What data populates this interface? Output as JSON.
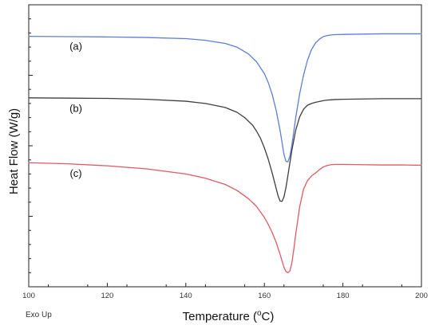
{
  "chart_data": {
    "type": "line",
    "title": "",
    "xlabel": "Temperature (",
    "xlabel_sup": "o",
    "xlabel_suffix": "C)",
    "ylabel": "Heat Flow (W/g)",
    "corner_note": "Exo Up",
    "xlim": [
      100,
      200
    ],
    "ylim": [
      0,
      100
    ],
    "xticks": [
      100,
      120,
      140,
      160,
      180,
      200
    ],
    "y_tick_labels_shown": false,
    "grid": false,
    "series": [
      {
        "label": "(a)",
        "color": "#5b7fd6",
        "x": [
          100,
          110,
          120,
          130,
          140,
          145,
          150,
          153,
          156,
          158,
          160,
          161,
          162,
          163,
          164,
          165,
          165.5,
          166,
          166.5,
          167,
          167.5,
          168,
          169,
          170,
          171,
          172,
          173,
          174,
          175,
          176,
          177,
          178,
          180,
          185,
          190,
          195,
          200
        ],
        "y": [
          88.8,
          88.7,
          88.6,
          88.4,
          88.0,
          87.4,
          86.3,
          85.0,
          82.5,
          79.8,
          75.6,
          72.4,
          68.2,
          62.6,
          55.5,
          46.9,
          44.5,
          44.3,
          46.3,
          50.2,
          55.1,
          60.1,
          68.5,
          75.2,
          80.4,
          84.1,
          86.4,
          87.8,
          88.7,
          89.1,
          89.3,
          89.4,
          89.5,
          89.6,
          89.7,
          89.7,
          89.7
        ]
      },
      {
        "label": "(b)",
        "color": "#3e3e3e",
        "x": [
          100,
          110,
          120,
          130,
          140,
          145,
          150,
          153,
          155,
          157,
          158,
          159,
          160,
          161,
          162,
          163,
          163.5,
          164,
          164.5,
          165,
          165.5,
          166,
          167,
          168,
          169,
          170,
          171,
          172,
          173,
          174,
          175,
          176,
          177,
          178,
          180,
          185,
          190,
          195,
          200
        ],
        "y": [
          67.0,
          66.9,
          66.8,
          66.5,
          65.8,
          65.0,
          63.6,
          61.9,
          60.0,
          57.3,
          55.2,
          52.7,
          49.3,
          45.2,
          40.3,
          34.9,
          32.2,
          30.4,
          30.3,
          31.9,
          35.2,
          39.5,
          48.4,
          55.6,
          60.3,
          63.0,
          64.4,
          65.0,
          65.4,
          65.7,
          66.0,
          66.2,
          66.3,
          66.4,
          66.5,
          66.6,
          66.7,
          66.7,
          66.7
        ]
      },
      {
        "label": "(c)",
        "color": "#e05a63",
        "x": [
          100,
          110,
          120,
          130,
          140,
          145,
          150,
          153,
          156,
          158,
          160,
          161,
          162,
          163,
          164,
          165,
          165.5,
          166,
          166.5,
          167,
          167.5,
          168,
          169,
          170,
          171,
          172,
          173,
          174,
          175,
          176,
          177,
          178,
          180,
          185,
          190,
          195,
          200
        ],
        "y": [
          44.0,
          43.6,
          42.9,
          41.8,
          40.0,
          38.5,
          36.3,
          34.2,
          31.2,
          28.5,
          24.6,
          22.1,
          19.2,
          15.8,
          11.5,
          6.9,
          5.4,
          5.0,
          5.6,
          8.4,
          13.3,
          18.8,
          28.4,
          34.7,
          37.7,
          39.3,
          40.3,
          41.5,
          42.5,
          43.0,
          43.3,
          43.4,
          43.4,
          43.3,
          43.2,
          43.2,
          43.1
        ]
      }
    ],
    "series_label_positions_x": [
      112,
      112,
      112
    ],
    "series_label_positions_y": [
      84,
      62,
      39
    ]
  }
}
